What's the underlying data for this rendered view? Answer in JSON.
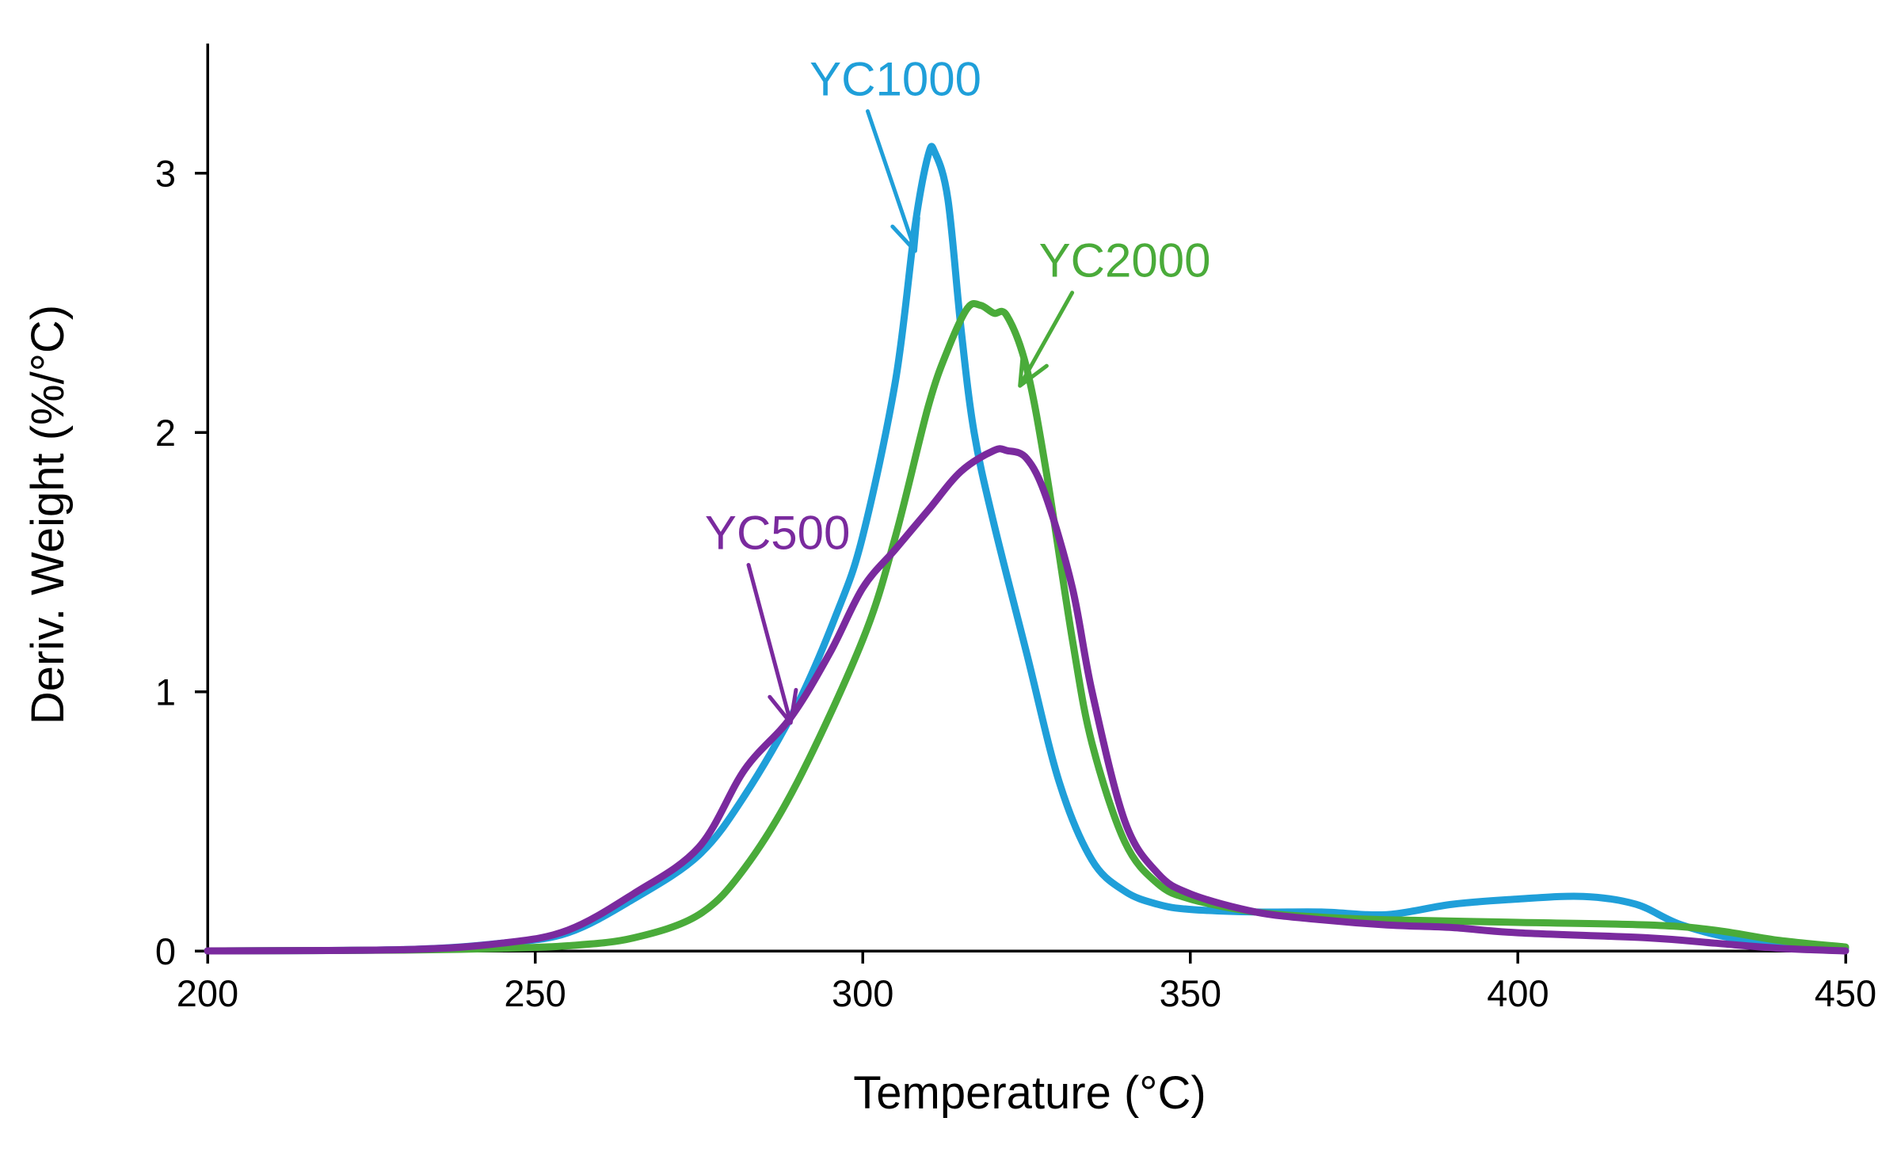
{
  "chart_data": {
    "type": "line",
    "title": "",
    "xlabel": "Temperature  (°C)",
    "ylabel": "Deriv.  Weight  (%/°C)",
    "xlim": [
      200,
      450
    ],
    "ylim": [
      0,
      3.5
    ],
    "xticks": [
      200,
      250,
      300,
      350,
      400,
      450
    ],
    "yticks": [
      0,
      1,
      2,
      3
    ],
    "xtick_labels": [
      "200",
      "250",
      "300",
      "350",
      "400",
      "450"
    ],
    "ytick_labels": [
      "0",
      "1",
      "2",
      "3"
    ],
    "grid": false,
    "legend": "none",
    "series": [
      {
        "name": "YC1000",
        "color": "#1f9fd9",
        "points": [
          [
            200,
            0.0
          ],
          [
            230,
            0.005
          ],
          [
            245,
            0.03
          ],
          [
            255,
            0.07
          ],
          [
            265,
            0.2
          ],
          [
            275,
            0.37
          ],
          [
            282,
            0.6
          ],
          [
            290,
            0.95
          ],
          [
            296,
            1.3
          ],
          [
            300,
            1.6
          ],
          [
            305,
            2.2
          ],
          [
            308,
            2.8
          ],
          [
            310,
            3.07
          ],
          [
            311,
            3.08
          ],
          [
            313,
            2.9
          ],
          [
            315,
            2.4
          ],
          [
            317,
            2.0
          ],
          [
            320,
            1.65
          ],
          [
            325,
            1.15
          ],
          [
            330,
            0.65
          ],
          [
            335,
            0.35
          ],
          [
            340,
            0.23
          ],
          [
            345,
            0.18
          ],
          [
            350,
            0.16
          ],
          [
            360,
            0.15
          ],
          [
            370,
            0.15
          ],
          [
            380,
            0.14
          ],
          [
            390,
            0.18
          ],
          [
            400,
            0.2
          ],
          [
            410,
            0.21
          ],
          [
            418,
            0.18
          ],
          [
            425,
            0.1
          ],
          [
            435,
            0.04
          ],
          [
            450,
            0.01
          ]
        ]
      },
      {
        "name": "YC2000",
        "color": "#4aab3a",
        "points": [
          [
            200,
            0.0
          ],
          [
            230,
            0.003
          ],
          [
            245,
            0.01
          ],
          [
            255,
            0.02
          ],
          [
            265,
            0.05
          ],
          [
            275,
            0.14
          ],
          [
            282,
            0.32
          ],
          [
            290,
            0.65
          ],
          [
            300,
            1.2
          ],
          [
            305,
            1.6
          ],
          [
            310,
            2.1
          ],
          [
            313,
            2.32
          ],
          [
            316,
            2.48
          ],
          [
            318,
            2.49
          ],
          [
            320,
            2.46
          ],
          [
            322,
            2.45
          ],
          [
            325,
            2.25
          ],
          [
            328,
            1.85
          ],
          [
            332,
            1.2
          ],
          [
            335,
            0.8
          ],
          [
            340,
            0.42
          ],
          [
            345,
            0.26
          ],
          [
            350,
            0.2
          ],
          [
            360,
            0.15
          ],
          [
            370,
            0.13
          ],
          [
            380,
            0.12
          ],
          [
            400,
            0.11
          ],
          [
            420,
            0.1
          ],
          [
            430,
            0.08
          ],
          [
            440,
            0.04
          ],
          [
            450,
            0.015
          ]
        ]
      },
      {
        "name": "YC500",
        "color": "#7a2a9e",
        "points": [
          [
            200,
            0.0
          ],
          [
            230,
            0.005
          ],
          [
            245,
            0.03
          ],
          [
            255,
            0.08
          ],
          [
            265,
            0.22
          ],
          [
            275,
            0.4
          ],
          [
            282,
            0.7
          ],
          [
            289,
            0.9
          ],
          [
            295,
            1.15
          ],
          [
            300,
            1.4
          ],
          [
            305,
            1.55
          ],
          [
            310,
            1.7
          ],
          [
            315,
            1.85
          ],
          [
            320,
            1.93
          ],
          [
            322,
            1.93
          ],
          [
            325,
            1.9
          ],
          [
            328,
            1.75
          ],
          [
            332,
            1.4
          ],
          [
            335,
            1.0
          ],
          [
            340,
            0.5
          ],
          [
            345,
            0.3
          ],
          [
            350,
            0.22
          ],
          [
            360,
            0.15
          ],
          [
            370,
            0.12
          ],
          [
            380,
            0.1
          ],
          [
            390,
            0.09
          ],
          [
            400,
            0.07
          ],
          [
            420,
            0.05
          ],
          [
            430,
            0.03
          ],
          [
            440,
            0.01
          ],
          [
            450,
            0.0
          ]
        ]
      }
    ],
    "annotations": [
      {
        "text": "YC1000",
        "color": "#1f9fd9",
        "label_at": [
          305,
          3.3
        ],
        "arrow_to": [
          308,
          2.7
        ]
      },
      {
        "text": "YC2000",
        "color": "#4aab3a",
        "label_at": [
          340,
          2.6
        ],
        "arrow_to": [
          324,
          2.18
        ]
      },
      {
        "text": "YC500",
        "color": "#7a2a9e",
        "label_at": [
          287,
          1.55
        ],
        "arrow_to": [
          289,
          0.88
        ]
      }
    ]
  }
}
